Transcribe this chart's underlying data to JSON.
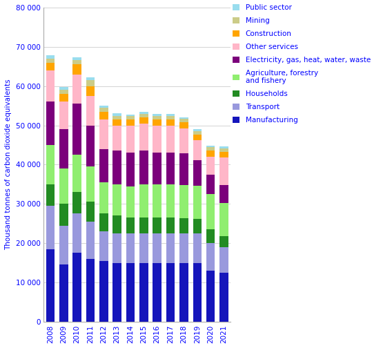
{
  "years": [
    2008,
    2009,
    2010,
    2011,
    2012,
    2013,
    2014,
    2015,
    2016,
    2017,
    2018,
    2019,
    2020,
    2021
  ],
  "series": {
    "Manufacturing": [
      18500,
      14500,
      17500,
      16000,
      15500,
      15000,
      15000,
      15000,
      15000,
      15000,
      15000,
      15000,
      13000,
      12500
    ],
    "Transport": [
      11000,
      10000,
      10000,
      9500,
      7500,
      7500,
      7500,
      7500,
      7500,
      7500,
      7500,
      7500,
      7000,
      6500
    ],
    "Households": [
      5500,
      5500,
      5500,
      5000,
      4500,
      4500,
      4000,
      4000,
      4000,
      4000,
      3800,
      3700,
      3500,
      2800
    ],
    "Agriculture, forestry and fishery": [
      10000,
      9000,
      9500,
      9000,
      8000,
      8000,
      8000,
      8500,
      8500,
      8500,
      8500,
      8500,
      9000,
      8500
    ],
    "Electricity, gas, heat, water, waste": [
      11000,
      10000,
      13000,
      10500,
      8500,
      8500,
      8500,
      8500,
      8000,
      8000,
      8000,
      6500,
      5000,
      4500
    ],
    "Other services": [
      8000,
      7000,
      7500,
      7500,
      7500,
      6500,
      7000,
      7000,
      7000,
      7000,
      6500,
      5000,
      4500,
      7000
    ],
    "Construction": [
      2000,
      2000,
      2500,
      2500,
      2000,
      1500,
      1500,
      1500,
      1500,
      1500,
      1500,
      1500,
      1500,
      1500
    ],
    "Mining": [
      1000,
      1000,
      1200,
      1500,
      1000,
      900,
      800,
      900,
      900,
      900,
      800,
      800,
      900,
      800
    ],
    "Public sector": [
      800,
      700,
      700,
      700,
      600,
      600,
      500,
      500,
      500,
      500,
      500,
      500,
      500,
      500
    ]
  },
  "colors": {
    "Manufacturing": "#1515BB",
    "Transport": "#9999DD",
    "Households": "#228B22",
    "Agriculture, forestry and fishery": "#90EE70",
    "Electricity, gas, heat, water, waste": "#7B007B",
    "Other services": "#FFB6C8",
    "Construction": "#FFA500",
    "Mining": "#CCCC88",
    "Public sector": "#99DDEE"
  },
  "ylabel": "Thousand tonnes of carbon dioxide equivalents",
  "ylim": [
    0,
    80000
  ],
  "yticks": [
    0,
    10000,
    20000,
    30000,
    40000,
    50000,
    60000,
    70000,
    80000
  ],
  "ytick_labels": [
    "0",
    "10 000",
    "20 000",
    "30 000",
    "40 000",
    "50 000",
    "60 000",
    "70 000",
    "80 000"
  ],
  "legend_order": [
    "Public sector",
    "Mining",
    "Construction",
    "Other services",
    "Electricity, gas, heat, water, waste",
    "Agriculture, forestry\nand fishery",
    "Households",
    "Transport",
    "Manufacturing"
  ],
  "legend_keys": [
    "Public sector",
    "Mining",
    "Construction",
    "Other services",
    "Electricity, gas, heat, water, waste",
    "Agriculture, forestry and fishery",
    "Households",
    "Transport",
    "Manufacturing"
  ],
  "stack_order": [
    "Manufacturing",
    "Transport",
    "Households",
    "Agriculture, forestry and fishery",
    "Electricity, gas, heat, water, waste",
    "Other services",
    "Construction",
    "Mining",
    "Public sector"
  ]
}
